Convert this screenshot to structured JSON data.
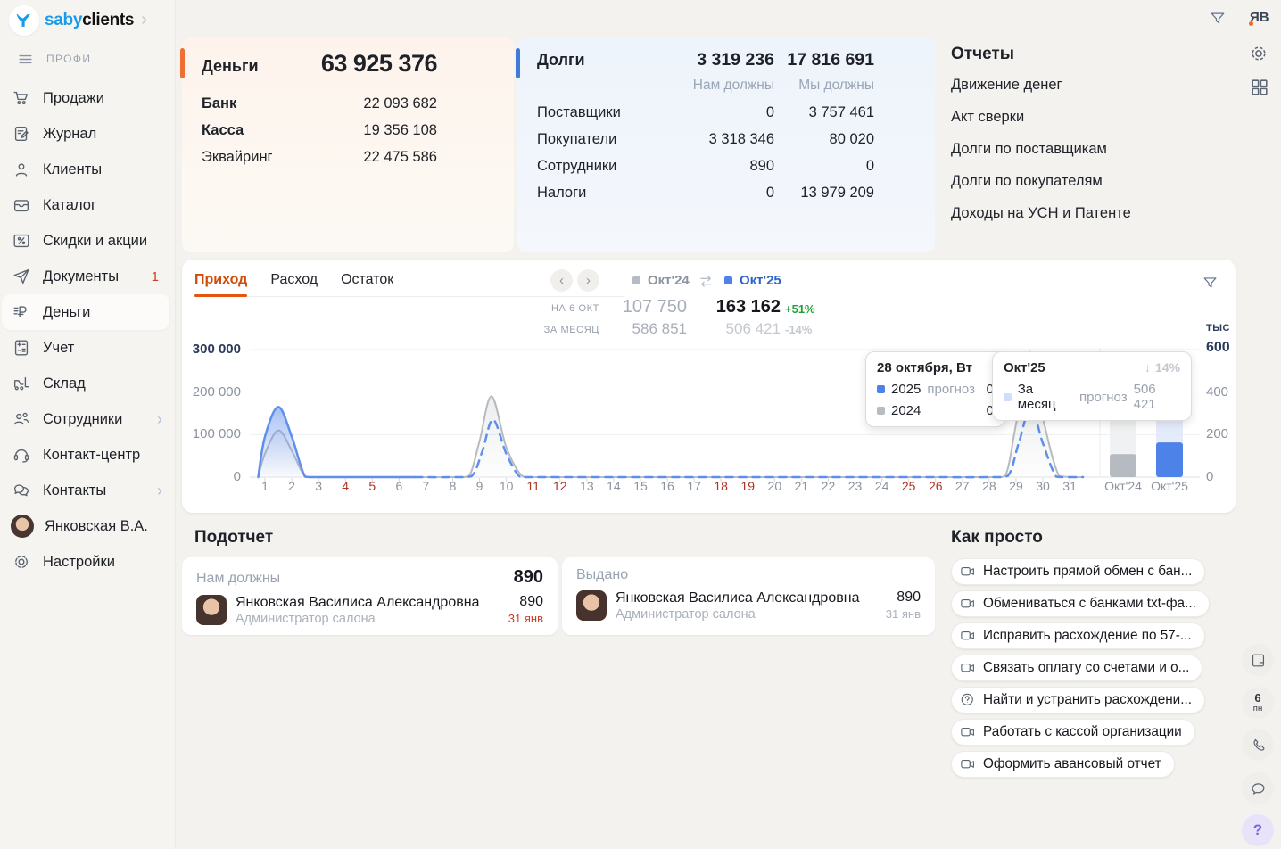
{
  "sidebar": {
    "logo_saby": "saby",
    "logo_clients": "clients",
    "workspace": "ПРОФИ",
    "items": [
      {
        "name": "sales",
        "label": "Продажи",
        "icon": "cart-icon"
      },
      {
        "name": "journal",
        "label": "Журнал",
        "icon": "journal-icon"
      },
      {
        "name": "clients",
        "label": "Клиенты",
        "icon": "clients-icon"
      },
      {
        "name": "catalog",
        "label": "Каталог",
        "icon": "catalog-icon"
      },
      {
        "name": "discounts",
        "label": "Скидки и акции",
        "icon": "discount-icon"
      },
      {
        "name": "documents",
        "label": "Документы",
        "icon": "documents-icon",
        "badge": "1"
      },
      {
        "name": "money",
        "label": "Деньги",
        "icon": "money-icon",
        "selected": true
      },
      {
        "name": "accounting",
        "label": "Учет",
        "icon": "accounting-icon"
      },
      {
        "name": "warehouse",
        "label": "Склад",
        "icon": "warehouse-icon"
      },
      {
        "name": "employees",
        "label": "Сотрудники",
        "icon": "employees-icon",
        "chevron": true
      },
      {
        "name": "contact-center",
        "label": "Контакт-центр",
        "icon": "contact-center-icon"
      },
      {
        "name": "contacts",
        "label": "Контакты",
        "icon": "contacts-icon",
        "chevron": true
      },
      {
        "name": "profile",
        "label": "Янковская В.А.",
        "icon": "avatar-photo"
      },
      {
        "name": "settings",
        "label": "Настройки",
        "icon": "settings-icon"
      }
    ]
  },
  "topbar": {
    "user_initials": "ЯВ"
  },
  "money_card": {
    "title": "Деньги",
    "total": "63 925 376",
    "rows": [
      {
        "label": "Банк",
        "value": "22 093 682",
        "bold": true
      },
      {
        "label": "Касса",
        "value": "19 356 108",
        "bold": true
      },
      {
        "label": "Эквайринг",
        "value": "22 475 586",
        "bold": false
      }
    ]
  },
  "debts_card": {
    "title": "Долги",
    "total_owed_to_us": "3 319 236",
    "total_we_owe": "17 816 691",
    "col_left": "Нам должны",
    "col_right": "Мы должны",
    "rows": [
      {
        "label": "Поставщики",
        "left": "0",
        "right": "3 757 461"
      },
      {
        "label": "Покупатели",
        "left": "3 318 346",
        "right": "80 020"
      },
      {
        "label": "Сотрудники",
        "left": "890",
        "right": "0"
      },
      {
        "label": "Налоги",
        "left": "0",
        "right": "13 979 209"
      }
    ]
  },
  "reports": {
    "title": "Отчеты",
    "items": [
      "Движение денег",
      "Акт сверки",
      "Долги по поставщикам",
      "Долги по покупателям",
      "Доходы на УСН и Патенте"
    ]
  },
  "chart": {
    "tabs": [
      {
        "label": "Приход",
        "active": true
      },
      {
        "label": "Расход",
        "active": false
      },
      {
        "label": "Остаток",
        "active": false
      }
    ],
    "legend": [
      {
        "label": "Окт'24",
        "square": "#b7bcc2",
        "text_color": "#8b939f"
      },
      {
        "label": "Окт'25",
        "square": "#4d82e8",
        "text_color": "#2d63c8"
      }
    ],
    "stats": {
      "row1_label": "НА 6 ОКТ",
      "row2_label": "ЗА МЕСЯЦ",
      "prev_on_date": "107 750",
      "cur_on_date": "163 162",
      "on_date_change": "+51%",
      "prev_month": "586 851",
      "cur_month": "506 421",
      "month_change": "-14%"
    },
    "tooltip_day": {
      "title": "28 октября, Вт",
      "rows": [
        {
          "year": "2025",
          "note": "прогноз",
          "value": "0",
          "square": "#4d82e8"
        },
        {
          "year": "2024",
          "note": "",
          "value": "0",
          "square": "#b7bcc2"
        }
      ]
    },
    "tooltip_month": {
      "title": "Окт'25",
      "arrow": "↓",
      "change": "14%",
      "row_label": "За месяц",
      "note": "прогноз",
      "value": "506 421",
      "square": "#cfdefa"
    },
    "y_labels": [
      "300 000",
      "200 000",
      "100 000",
      "0"
    ],
    "right_axis": {
      "unit": "ТЫС",
      "labels": [
        "600",
        "400",
        "200",
        "0"
      ]
    },
    "days_in_month": 31,
    "weekend_days": [
      4,
      5,
      11,
      12,
      18,
      19,
      25,
      26
    ],
    "bar_labels": [
      "Окт'24",
      "Окт'25"
    ]
  },
  "chart_data": {
    "type": "line",
    "title": "Приход",
    "x_unit": "день октября",
    "x_range": [
      1,
      31
    ],
    "ylim": [
      0,
      300000
    ],
    "grid": true,
    "series": [
      {
        "name": "Окт'24",
        "style": "solid-gray",
        "color": "#b7babf",
        "points": [
          [
            0.75,
            0
          ],
          [
            1,
            55000
          ],
          [
            1.5,
            110000
          ],
          [
            2,
            62000
          ],
          [
            2.5,
            1000
          ],
          [
            3,
            0
          ],
          [
            5,
            0
          ],
          [
            8,
            0
          ],
          [
            8.6,
            2000
          ],
          [
            9,
            85000
          ],
          [
            9.45,
            190000
          ],
          [
            10,
            70000
          ],
          [
            10.6,
            2000
          ],
          [
            11.2,
            0
          ],
          [
            15,
            0
          ],
          [
            20,
            0
          ],
          [
            25,
            0
          ],
          [
            28,
            0
          ],
          [
            28.6,
            3000
          ],
          [
            29,
            125000
          ],
          [
            29.5,
            295000
          ],
          [
            30,
            140000
          ],
          [
            30.6,
            3000
          ],
          [
            31.2,
            0
          ],
          [
            31.5,
            0
          ]
        ]
      },
      {
        "name": "Окт'25 факт",
        "style": "solid-blue",
        "color": "#5f8fee",
        "points": [
          [
            0.75,
            0
          ],
          [
            1,
            95000
          ],
          [
            1.5,
            165000
          ],
          [
            2,
            95000
          ],
          [
            2.5,
            1000
          ],
          [
            3,
            0
          ],
          [
            4,
            0
          ],
          [
            5,
            0
          ],
          [
            6,
            0
          ],
          [
            6.6,
            0
          ]
        ]
      },
      {
        "name": "Окт'25 прогноз",
        "style": "dashed-blue",
        "color": "#5f8fee",
        "points": [
          [
            6.6,
            0
          ],
          [
            8,
            0
          ],
          [
            8.7,
            2000
          ],
          [
            9.1,
            60000
          ],
          [
            9.5,
            135000
          ],
          [
            10,
            55000
          ],
          [
            10.5,
            1000
          ],
          [
            11,
            0
          ],
          [
            15,
            0
          ],
          [
            20,
            0
          ],
          [
            25,
            0
          ],
          [
            28,
            0
          ],
          [
            28.7,
            3000
          ],
          [
            29.1,
            80000
          ],
          [
            29.55,
            163000
          ],
          [
            30,
            80000
          ],
          [
            30.5,
            1000
          ],
          [
            31,
            0
          ],
          [
            31.5,
            0
          ]
        ]
      }
    ],
    "summary_bars": {
      "unit": "тыс",
      "ylim": [
        0,
        600
      ],
      "categories": [
        "Окт'24",
        "Окт'25"
      ],
      "actual_on_date": [
        107.75,
        163.162
      ],
      "month_total_forecast": [
        586.851,
        506.421
      ]
    },
    "stats": {
      "on_date": {
        "label": "НА 6 ОКТ",
        "okt24": 107750,
        "okt25": 163162,
        "change_pct": "+51%"
      },
      "month": {
        "label": "ЗА МЕСЯЦ",
        "okt24": 586851,
        "okt25": 506421,
        "change_pct": "-14%"
      }
    }
  },
  "podotchet": {
    "title": "Подотчет",
    "cards": [
      {
        "type_label": "Нам должны",
        "total": "890",
        "person": {
          "name": "Янковская Василиса Александровна",
          "role": "Администратор салона"
        },
        "value": "890",
        "date": "31 янв",
        "date_red": true
      },
      {
        "type_label": "Выдано",
        "total": "",
        "person": {
          "name": "Янковская Василиса Александровна",
          "role": "Администратор салона"
        },
        "value": "890",
        "date": "31 янв",
        "date_red": false
      }
    ]
  },
  "kak_prosto": {
    "title": "Как просто",
    "items": [
      {
        "label": "Настроить прямой обмен с бан...",
        "icon": "video-icon"
      },
      {
        "label": "Обмениваться с банками txt-фа...",
        "icon": "video-icon"
      },
      {
        "label": "Исправить расхождение по 57-...",
        "icon": "video-icon"
      },
      {
        "label": "Связать оплату со счетами и о...",
        "icon": "video-icon"
      },
      {
        "label": "Найти и устранить расхождени...",
        "icon": "question-icon"
      },
      {
        "label": "Работать с кассой организации",
        "icon": "video-icon"
      },
      {
        "label": "Оформить авансовый отчет",
        "icon": "video-icon"
      }
    ]
  },
  "right_rail": {
    "calendar_day": "6",
    "calendar_weekday": "пн",
    "help_label": "?"
  },
  "colors": {
    "accent_orange": "#ee6f33",
    "accent_blue": "#3f79d9",
    "tab_active": "#cf4d0c",
    "positive_green": "#21a038",
    "negative_red": "#cf3c23",
    "line_blue": "#5f8fee",
    "line_gray": "#b7babf",
    "bar_blue": "#4d82e8",
    "bar_gray": "#b6bac1"
  }
}
